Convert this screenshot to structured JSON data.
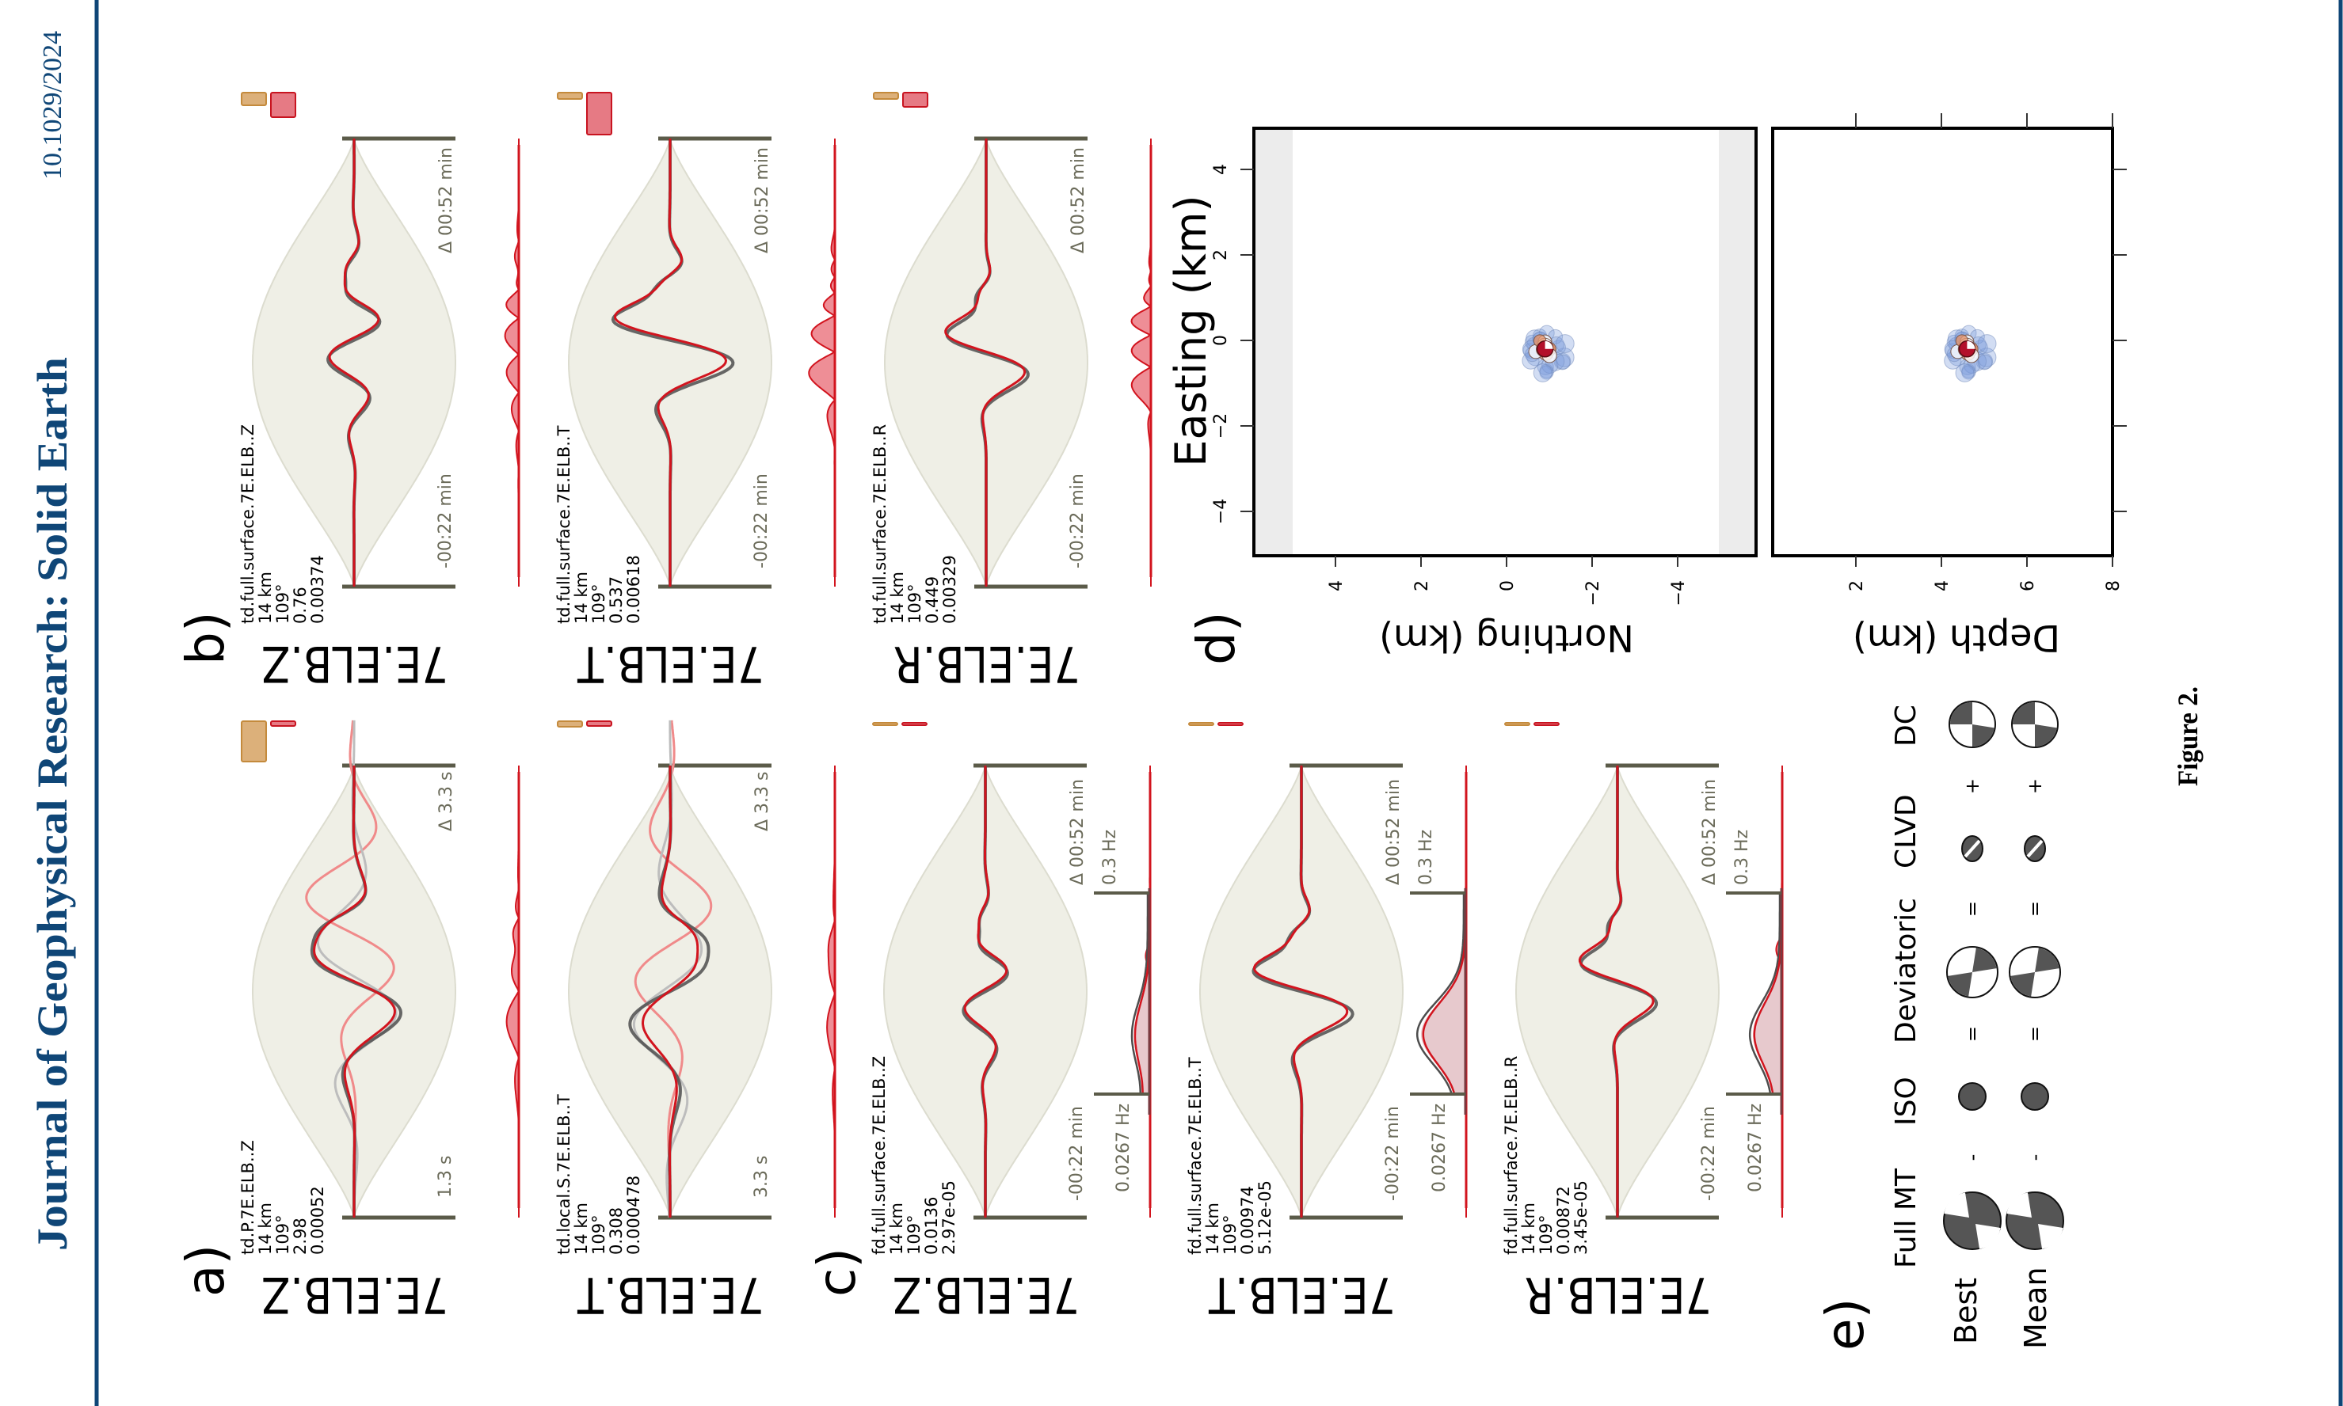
{
  "header": {
    "journal": "Journal of Geophysical Research: Solid Earth",
    "doi": "10.1029/2024"
  },
  "figure_caption": "Figure 2.",
  "colors": {
    "journal_navy": "#0f4677",
    "envelope": "#efefe6",
    "scale_bar": "#5b5b49",
    "observed": "#4d4d4d",
    "synthetic": "#d2141e",
    "misfit_fill": "#ee8e96",
    "spectrum_fill": "#e7c9cd",
    "legend_orange": "#dcb07a",
    "beachball_dark": "#555555"
  },
  "panel_labels": {
    "a": "a)",
    "b": "b)",
    "c": "c)",
    "d": "d)",
    "e": "e)"
  },
  "panel_a": {
    "rows": [
      {
        "station": "7E.ELB.Z",
        "info": [
          "td.P.7E.ELB..Z",
          "14 km",
          "109°",
          "2.98",
          "0.00052"
        ],
        "start_label": "1.3 s",
        "window_label": "Δ 3.3 s"
      },
      {
        "station": "7E.ELB.T",
        "info": [
          "td.local.S.7E.ELB..T",
          "14 km",
          "109°",
          "0.308",
          "0.000478"
        ],
        "start_label": "3.3 s",
        "window_label": "Δ 3.3 s"
      }
    ]
  },
  "panel_b": {
    "rows": [
      {
        "station": "7E.ELB.Z",
        "info": [
          "td.full.surface.7E.ELB..Z",
          "14 km",
          "109°",
          "0.76",
          "0.00374"
        ],
        "start_label": "-00:22 min",
        "window_label": "Δ 00:52 min"
      },
      {
        "station": "7E.ELB.T",
        "info": [
          "td.full.surface.7E.ELB..T",
          "14 km",
          "109°",
          "0.537",
          "0.00618"
        ],
        "start_label": "-00:22 min",
        "window_label": "Δ 00:52 min"
      },
      {
        "station": "7E.ELB.R",
        "info": [
          "td.full.surface.7E.ELB..R",
          "14 km",
          "109°",
          "0.449",
          "0.00329"
        ],
        "start_label": "-00:22 min",
        "window_label": "Δ 00:52 min"
      }
    ]
  },
  "panel_c": {
    "rows": [
      {
        "station": "7E.ELB.Z",
        "info": [
          "fd.full.surface.7E.ELB..Z",
          "14 km",
          "109°",
          "0.0136",
          "2.97e-05"
        ],
        "start_label": "-00:22 min",
        "window_label": "Δ 00:52 min",
        "fmin_label": "0.0267 Hz",
        "fmax_label": "0.3 Hz"
      },
      {
        "station": "7E.ELB.T",
        "info": [
          "fd.full.surface.7E.ELB..T",
          "14 km",
          "109°",
          "0.00974",
          "5.12e-05"
        ],
        "start_label": "-00:22 min",
        "window_label": "Δ 00:52 min",
        "fmin_label": "0.0267 Hz",
        "fmax_label": "0.3 Hz"
      },
      {
        "station": "7E.ELB.R",
        "info": [
          "fd.full.surface.7E.ELB..R",
          "14 km",
          "109°",
          "0.00872",
          "3.45e-05"
        ],
        "start_label": "-00:22 min",
        "window_label": "Δ 00:52 min",
        "fmin_label": "0.0267 Hz",
        "fmax_label": "0.3 Hz"
      }
    ]
  },
  "panel_d": {
    "easting_label": "Easting (km)",
    "northing_label": "Northing (km)",
    "depth_label": "Depth (km)",
    "easting_range": [
      -5,
      5
    ],
    "northing_range": [
      -5.8,
      5.9
    ],
    "depth_range": [
      0,
      8
    ],
    "easting_ticks": [
      {
        "value": 4,
        "label": "4"
      },
      {
        "value": 2,
        "label": "2"
      },
      {
        "value": 0,
        "label": "0"
      },
      {
        "value": -2,
        "label": "−2"
      },
      {
        "value": -4,
        "label": "−4"
      }
    ],
    "northing_ticks": [
      {
        "value": 4,
        "label": "4"
      },
      {
        "value": 2,
        "label": "2"
      },
      {
        "value": 0,
        "label": "0"
      },
      {
        "value": -2,
        "label": "−2"
      },
      {
        "value": -4,
        "label": "−4"
      }
    ],
    "depth_ticks": [
      {
        "value": 2,
        "label": "2"
      },
      {
        "value": 4,
        "label": "4"
      },
      {
        "value": 6,
        "label": "6"
      },
      {
        "value": 8,
        "label": "8"
      }
    ],
    "solution_cluster": {
      "northing": -0.9,
      "easting": -0.2,
      "depth": 4.6
    }
  },
  "panel_e": {
    "columns": [
      "Full MT",
      "ISO",
      "Deviatoric",
      "CLVD",
      "DC"
    ],
    "rows": [
      "Best",
      "Mean"
    ],
    "operators": [
      "-",
      "=",
      "=",
      "+"
    ]
  }
}
